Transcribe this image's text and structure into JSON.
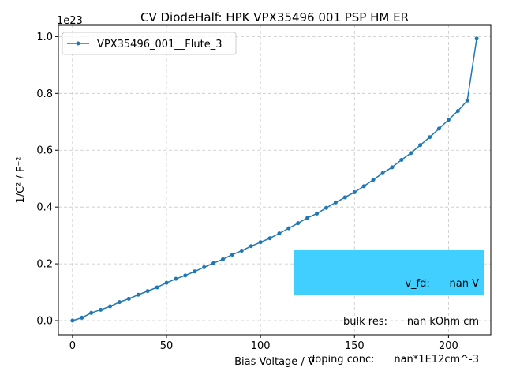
{
  "chart_data": {
    "type": "line",
    "title": "CV DiodeHalf: HPK VPX35496 001 PSP HM ER",
    "xlabel": "Bias Voltage / V",
    "ylabel": "1/C² / F⁻²",
    "y_offset_label": "1e23",
    "xlim": [
      -7.5,
      222.5
    ],
    "ylim": [
      -0.05,
      1.04
    ],
    "x_ticks": [
      0,
      50,
      100,
      150,
      200
    ],
    "x_tick_labels": [
      "0",
      "50",
      "100",
      "150",
      "200"
    ],
    "y_ticks": [
      0.0,
      0.2,
      0.4,
      0.6,
      0.8,
      1.0
    ],
    "y_tick_labels": [
      "0.0",
      "0.2",
      "0.4",
      "0.6",
      "0.8",
      "1.0"
    ],
    "grid": true,
    "legend_position": "upper-left",
    "series": [
      {
        "name": "VPX35496_001__Flute_3",
        "color": "#1f77b4",
        "x": [
          0,
          5,
          10,
          15,
          20,
          25,
          30,
          35,
          40,
          45,
          50,
          55,
          60,
          65,
          70,
          75,
          80,
          85,
          90,
          95,
          100,
          105,
          110,
          115,
          120,
          125,
          130,
          135,
          140,
          145,
          150,
          155,
          160,
          165,
          170,
          175,
          180,
          185,
          190,
          195,
          200,
          205,
          210,
          215
        ],
        "values": [
          0.0,
          0.01,
          0.027,
          0.038,
          0.05,
          0.065,
          0.077,
          0.091,
          0.104,
          0.117,
          0.133,
          0.147,
          0.159,
          0.173,
          0.188,
          0.202,
          0.216,
          0.232,
          0.246,
          0.262,
          0.276,
          0.29,
          0.307,
          0.325,
          0.343,
          0.362,
          0.377,
          0.397,
          0.416,
          0.434,
          0.452,
          0.473,
          0.496,
          0.519,
          0.54,
          0.566,
          0.59,
          0.618,
          0.646,
          0.676,
          0.707,
          0.738,
          0.775,
          0.993
        ]
      }
    ]
  },
  "info_box": {
    "background": "#40cfff",
    "rows": [
      "v_fd:      nan V",
      "bulk res:      nan kOhm cm",
      "doping conc:      nan*1E12cm^-3"
    ]
  }
}
